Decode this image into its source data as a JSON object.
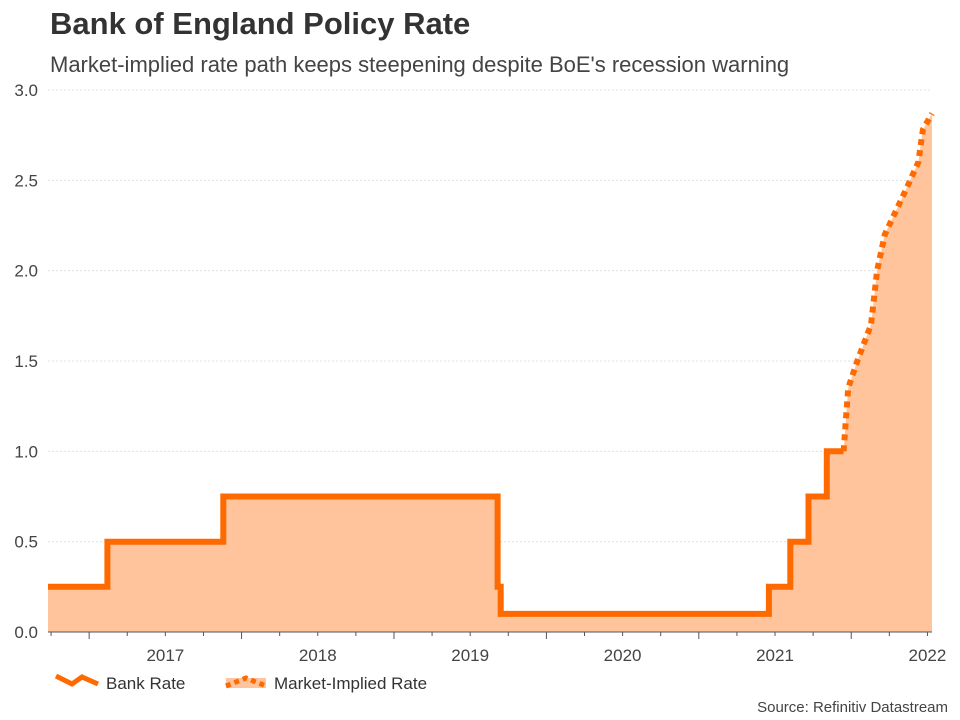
{
  "title": "Bank of England Policy Rate",
  "subtitle": "Market-implied rate path keeps steepening despite BoE's recession warning",
  "source": "Source: Refinitiv Datastream",
  "colors": {
    "line": "#ff6a00",
    "area": "#ffc49c",
    "grid": "#e0e0e0",
    "axis": "#555555"
  },
  "chart_data": {
    "type": "area",
    "title": "Bank of England Policy Rate",
    "xlabel": "",
    "ylabel": "",
    "xlim": [
      2016.73,
      2022.53
    ],
    "ylim": [
      0,
      3.0
    ],
    "y_ticks": [
      "0.0",
      "0.5",
      "1.0",
      "1.5",
      "2.0",
      "2.5",
      "3.0"
    ],
    "x_ticks": [
      "2017",
      "2018",
      "2019",
      "2020",
      "2021",
      "2022"
    ],
    "x_tick_positions": [
      2017.0,
      2018.0,
      2019.0,
      2020.0,
      2021.0,
      2022.0
    ],
    "legend": [
      "Bank Rate",
      "Market-Implied Rate"
    ],
    "legend_position": "bottom-left",
    "series": [
      {
        "name": "Bank Rate",
        "style": "solid",
        "points": [
          [
            2016.73,
            0.25
          ],
          [
            2017.12,
            0.25
          ],
          [
            2017.12,
            0.5
          ],
          [
            2017.88,
            0.5
          ],
          [
            2017.88,
            0.75
          ],
          [
            2019.68,
            0.75
          ],
          [
            2019.68,
            0.25
          ],
          [
            2019.7,
            0.25
          ],
          [
            2019.7,
            0.1
          ],
          [
            2021.46,
            0.1
          ],
          [
            2021.46,
            0.25
          ],
          [
            2021.6,
            0.25
          ],
          [
            2021.6,
            0.5
          ],
          [
            2021.72,
            0.5
          ],
          [
            2021.72,
            0.75
          ],
          [
            2021.84,
            0.75
          ],
          [
            2021.84,
            1.0
          ],
          [
            2021.95,
            1.0
          ]
        ]
      },
      {
        "name": "Market-Implied Rate",
        "style": "dotted",
        "points": [
          [
            2021.95,
            1.0
          ],
          [
            2021.98,
            1.35
          ],
          [
            2022.04,
            1.5
          ],
          [
            2022.13,
            1.7
          ],
          [
            2022.17,
            2.0
          ],
          [
            2022.22,
            2.2
          ],
          [
            2022.36,
            2.45
          ],
          [
            2022.44,
            2.6
          ],
          [
            2022.47,
            2.78
          ],
          [
            2022.53,
            2.87
          ]
        ]
      }
    ]
  }
}
